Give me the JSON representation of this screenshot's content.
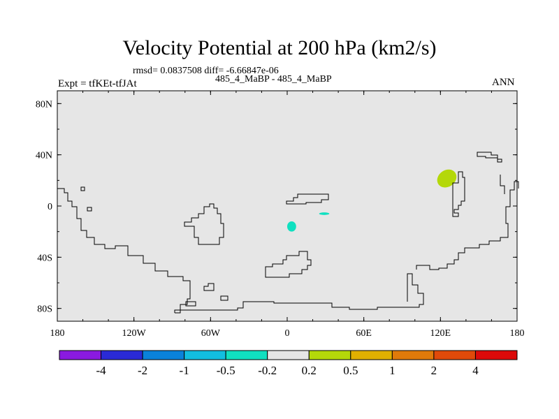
{
  "header": {
    "title": "Velocity Potential at 200 hPa (km2/s)",
    "stats": "rmsd= 0.0837508 diff= -6.66847e-06",
    "case_label": "485_4_MaBP - 485_4_MaBP",
    "expt_label": "Expt = tfKEt-tfJAt",
    "season": "ANN"
  },
  "chart_data": {
    "type": "heatmap",
    "title": "Velocity Potential at 200 hPa (km2/s)",
    "subtitle": "485_4_MaBP - 485_4_MaBP",
    "xlim": [
      -180,
      180
    ],
    "ylim": [
      -90,
      90
    ],
    "x_ticks": [
      {
        "value": -180,
        "label": "180"
      },
      {
        "value": -120,
        "label": "120W"
      },
      {
        "value": -60,
        "label": "60W"
      },
      {
        "value": 0,
        "label": "0"
      },
      {
        "value": 60,
        "label": "60E"
      },
      {
        "value": 120,
        "label": "120E"
      },
      {
        "value": 180,
        "label": "180"
      }
    ],
    "y_ticks": [
      {
        "value": 80,
        "label": "80N"
      },
      {
        "value": 40,
        "label": "40N"
      },
      {
        "value": 0,
        "label": "0"
      },
      {
        "value": -40,
        "label": "40S"
      },
      {
        "value": -80,
        "label": "80S"
      }
    ],
    "background_color": "#e6e6e6",
    "colorbar": {
      "boundaries": [
        "-4",
        "-2",
        "-1",
        "-0.5",
        "-0.2",
        "0.2",
        "0.5",
        "1",
        "2",
        "4"
      ],
      "colors": [
        "#8a1ae0",
        "#2a2ad6",
        "#0a82da",
        "#12bee0",
        "#10e0c0",
        "#e6e6e6",
        "#b4d80a",
        "#e0b000",
        "#e07a0a",
        "#e04a0a",
        "#dc0a0a"
      ]
    },
    "regions": [
      {
        "value_range": "0.2 to 0.5",
        "color": "#b4d80a",
        "lon_range": [
          117,
          133
        ],
        "lat_range": [
          15,
          28
        ]
      },
      {
        "value_range": "-0.5 to -0.2",
        "color": "#10e0c0",
        "lon_range": [
          0,
          7
        ],
        "lat_range": [
          -20,
          -12
        ]
      },
      {
        "value_range": "-0.5 to -0.2",
        "color": "#10e0c0",
        "lon_range": [
          25,
          33
        ],
        "lat_range": [
          -7,
          -5
        ]
      }
    ]
  }
}
